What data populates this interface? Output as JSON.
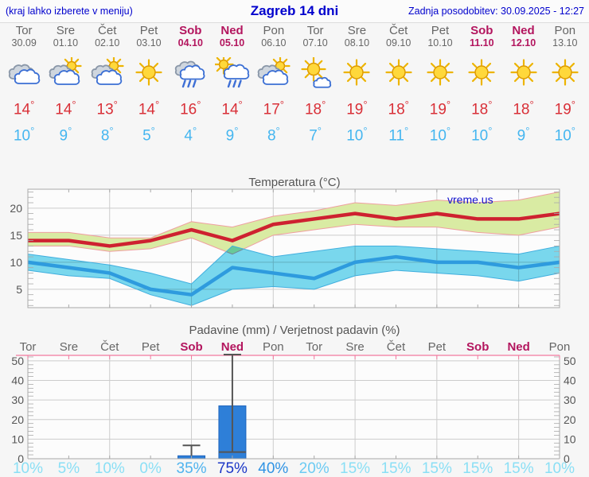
{
  "header": {
    "hint": "(kraj lahko izberete v meniju)",
    "title": "Zagreb 14 dni",
    "updated": "Zadnja posodobitev: 30.09.2025 - 12:27"
  },
  "forecast": {
    "days": [
      {
        "name": "Tor",
        "date": "30.09",
        "weekend": false,
        "icon": "cloudy",
        "max": 14,
        "min": 10,
        "prob": "10%",
        "prob_color": "#8ADFF5"
      },
      {
        "name": "Sre",
        "date": "01.10",
        "weekend": false,
        "icon": "partly-sunny",
        "max": 14,
        "min": 9,
        "prob": "5%",
        "prob_color": "#8ADFF5"
      },
      {
        "name": "Čet",
        "date": "02.10",
        "weekend": false,
        "icon": "partly-sunny",
        "max": 13,
        "min": 8,
        "prob": "10%",
        "prob_color": "#8ADFF5"
      },
      {
        "name": "Pet",
        "date": "03.10",
        "weekend": false,
        "icon": "sunny",
        "max": 14,
        "min": 5,
        "prob": "0%",
        "prob_color": "#8ADFF5"
      },
      {
        "name": "Sob",
        "date": "04.10",
        "weekend": true,
        "icon": "rain",
        "max": 16,
        "min": 4,
        "prob": "35%",
        "prob_color": "#4FB3EE"
      },
      {
        "name": "Ned",
        "date": "05.10",
        "weekend": true,
        "icon": "sun-rain",
        "max": 14,
        "min": 9,
        "prob": "75%",
        "prob_color": "#1C37C7"
      },
      {
        "name": "Pon",
        "date": "06.10",
        "weekend": false,
        "icon": "partly-sunny",
        "max": 17,
        "min": 8,
        "prob": "40%",
        "prob_color": "#2F93E4"
      },
      {
        "name": "Tor",
        "date": "07.10",
        "weekend": false,
        "icon": "mostly-sunny",
        "max": 18,
        "min": 7,
        "prob": "20%",
        "prob_color": "#6CCBF3"
      },
      {
        "name": "Sre",
        "date": "08.10",
        "weekend": false,
        "icon": "sunny",
        "max": 19,
        "min": 10,
        "prob": "15%",
        "prob_color": "#8ADFF5"
      },
      {
        "name": "Čet",
        "date": "09.10",
        "weekend": false,
        "icon": "sunny",
        "max": 18,
        "min": 11,
        "prob": "15%",
        "prob_color": "#8ADFF5"
      },
      {
        "name": "Pet",
        "date": "10.10",
        "weekend": false,
        "icon": "sunny",
        "max": 19,
        "min": 10,
        "prob": "15%",
        "prob_color": "#8ADFF5"
      },
      {
        "name": "Sob",
        "date": "11.10",
        "weekend": true,
        "icon": "sunny",
        "max": 18,
        "min": 10,
        "prob": "15%",
        "prob_color": "#8ADFF5"
      },
      {
        "name": "Ned",
        "date": "12.10",
        "weekend": true,
        "icon": "sunny",
        "max": 18,
        "min": 9,
        "prob": "15%",
        "prob_color": "#8ADFF5"
      },
      {
        "name": "Pon",
        "date": "13.10",
        "weekend": false,
        "icon": "sunny",
        "max": 19,
        "min": 10,
        "prob": "10%",
        "prob_color": "#8ADFF5"
      }
    ]
  },
  "chart_data": [
    {
      "type": "line-band",
      "title": "Temperatura (°C)",
      "watermark": "vreme.us",
      "x_categories": [
        "Tor",
        "Sre",
        "Čet",
        "Pet",
        "Sob",
        "Ned",
        "Pon",
        "Tor",
        "Sre",
        "Čet",
        "Pet",
        "Sob",
        "Ned",
        "Pon"
      ],
      "ylim": [
        1.6,
        23.5
      ],
      "ylabel_ticks": [
        5,
        10,
        15,
        20
      ],
      "grid": true,
      "series": {
        "max": [
          14,
          14,
          13,
          14,
          16,
          14,
          17,
          18,
          19,
          18,
          19,
          18,
          18,
          19
        ],
        "max_band_upper": [
          15.5,
          15.5,
          14.5,
          14.5,
          17.5,
          16.5,
          18.5,
          19.5,
          21,
          20.5,
          21.5,
          21,
          21.5,
          23
        ],
        "max_band_lower": [
          13,
          13,
          12,
          12.5,
          14.5,
          11.5,
          15,
          16,
          17,
          16.5,
          16.5,
          15.5,
          15,
          16.5
        ],
        "min": [
          10,
          9,
          8,
          5,
          4,
          9,
          8,
          7,
          10,
          11,
          10,
          10,
          9,
          10
        ],
        "min_band_upper": [
          11.5,
          10.5,
          9.5,
          8,
          6,
          13,
          11,
          12,
          13,
          13,
          12.5,
          12,
          11.5,
          13
        ],
        "min_band_lower": [
          8.5,
          7.5,
          7,
          4,
          2,
          5,
          5.5,
          5,
          7.5,
          8.5,
          8,
          7.5,
          6.5,
          8
        ]
      }
    },
    {
      "type": "bar",
      "title": "Padavine (mm) / Verjetnost padavin (%)",
      "x_categories": [
        "Tor",
        "Sre",
        "Čet",
        "Pet",
        "Sob",
        "Ned",
        "Pon",
        "Tor",
        "Sre",
        "Čet",
        "Pet",
        "Sob",
        "Ned",
        "Pon"
      ],
      "ylim": [
        0,
        52.8
      ],
      "yticks": [
        0,
        10,
        20,
        30,
        40,
        50
      ],
      "grid": true,
      "values_mm": [
        0,
        0,
        0,
        0,
        1.5,
        27,
        0,
        0,
        0,
        0,
        0,
        0,
        0,
        0
      ],
      "whiskers": [
        {
          "day_index": 4,
          "low": 1.5,
          "high": 6.8,
          "bottom_cap": false
        },
        {
          "day_index": 5,
          "low": 3.4,
          "high": 53,
          "bottom_cap": true
        }
      ],
      "probabilities_pct": [
        10,
        5,
        10,
        0,
        35,
        75,
        40,
        20,
        15,
        15,
        15,
        15,
        15,
        10
      ]
    }
  ],
  "colors": {
    "link_blue": "#0000CD",
    "weekday_text": "#666666",
    "weekend_text": "#B3155E",
    "max_temp_text": "#D93038",
    "min_temp_text": "#45B6F0",
    "chart_text": "#555555",
    "axis": "#A9A9A9",
    "grid": "#CCCCCC",
    "max_line": "#CE2130",
    "max_band": "#D9EBA3",
    "max_band_edge": "#EF9FA0",
    "min_line": "#2E9BDE",
    "min_band": "#7ADAF0",
    "min_band_edge": "#3FAEDE",
    "bar_fill": "#2E7FD8",
    "bar_edge": "#1F66BE",
    "whisker": "#555555",
    "precip_top_axis": "#F2799E",
    "watermark": "#1212CC"
  }
}
